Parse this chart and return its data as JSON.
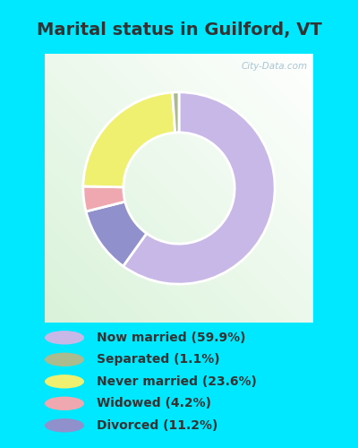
{
  "title": "Marital status in Guilford, VT",
  "values": [
    59.9,
    11.2,
    4.2,
    23.6,
    1.1
  ],
  "colors": [
    "#c8b8e8",
    "#9090cc",
    "#f0a8b0",
    "#f0f070",
    "#aabb90"
  ],
  "legend_labels": [
    "Now married (59.9%)",
    "Separated (1.1%)",
    "Never married (23.6%)",
    "Widowed (4.2%)",
    "Divorced (11.2%)"
  ],
  "legend_colors": [
    "#c8b8e8",
    "#aabb90",
    "#f0f070",
    "#f0a8b0",
    "#9090cc"
  ],
  "bg_cyan": "#00e8ff",
  "bg_chart_color1": "#d8f0d8",
  "bg_chart_color2": "#ffffff",
  "watermark": "City-Data.com",
  "title_fontsize": 14,
  "legend_fontsize": 10,
  "donut_width": 0.42,
  "startangle": 90
}
